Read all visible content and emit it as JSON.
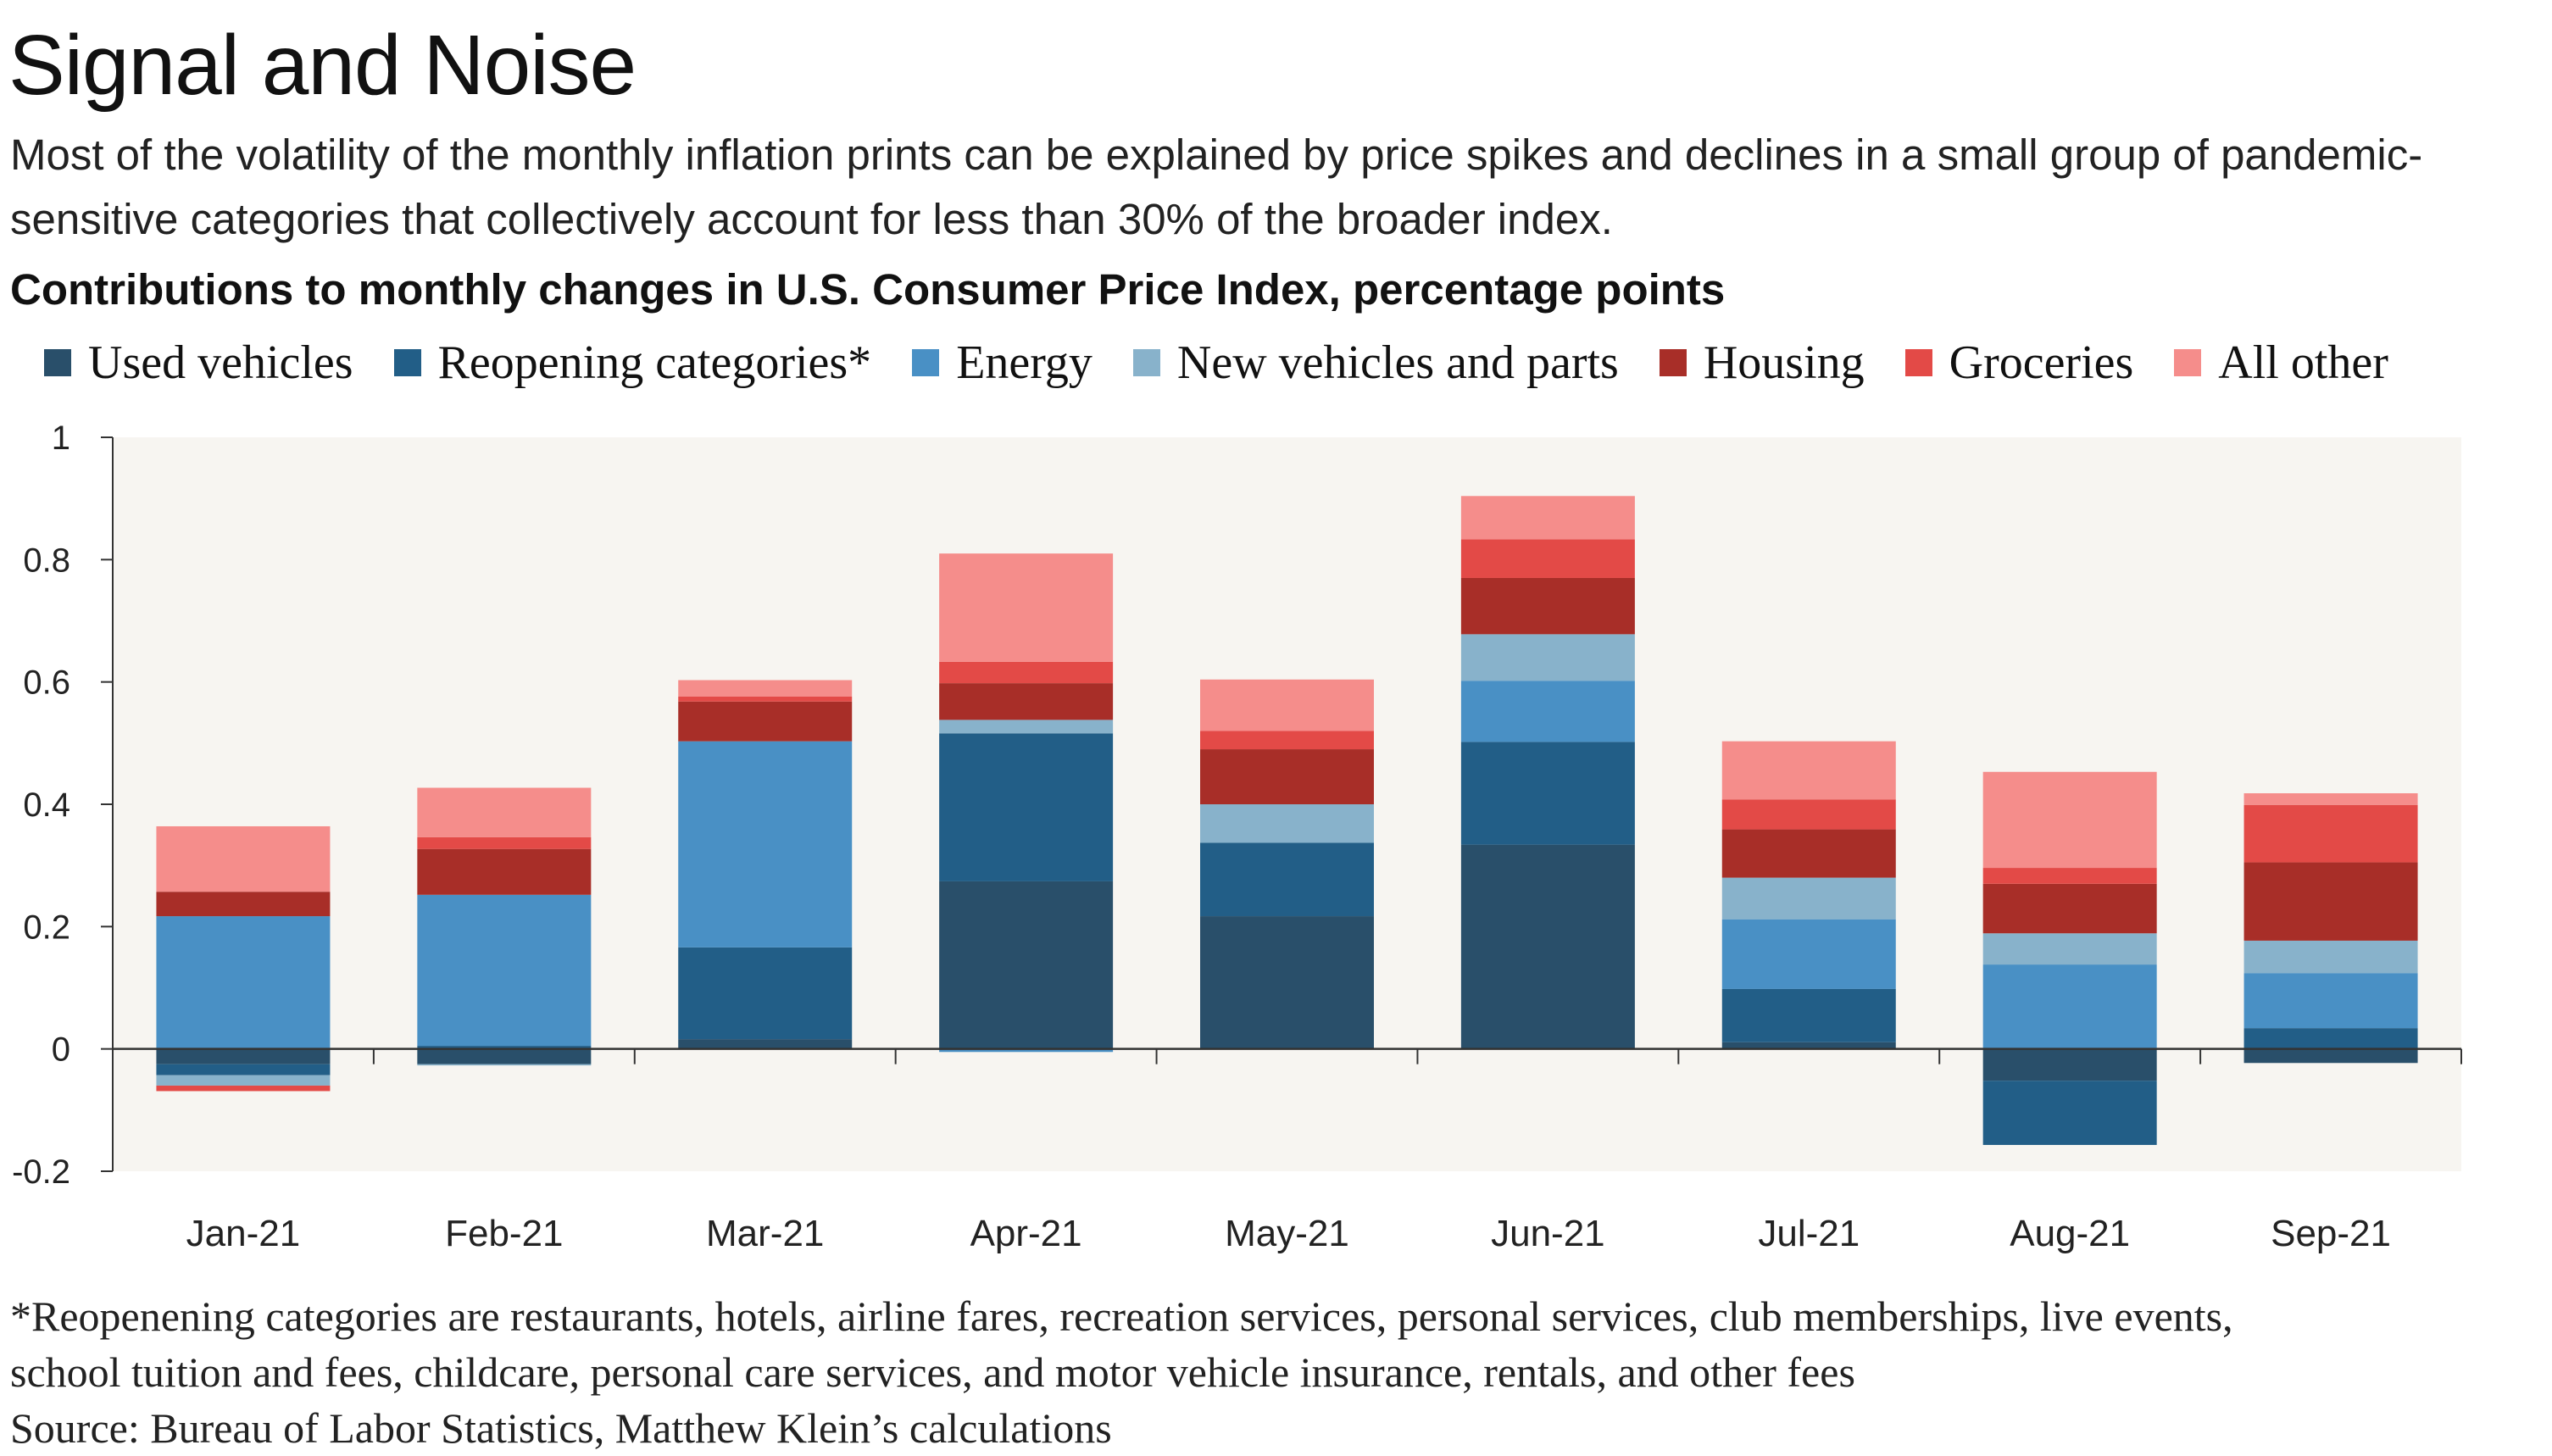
{
  "title": "Signal and Noise",
  "subtitle": "Most of the volatility of the monthly inflation prints can be explained by price spikes and declines in a small group of pandemic-sensitive categories that collectively account for less than 30% of the broader index.",
  "chart_data": {
    "type": "bar",
    "stacked": true,
    "title": "Contributions to monthly changes in U.S. Consumer Price Index, percentage points",
    "xlabel": "",
    "ylabel": "",
    "ylim": [
      -0.2,
      1
    ],
    "yticks": [
      -0.2,
      0,
      0.2,
      0.4,
      0.6,
      0.8,
      1
    ],
    "ytick_labels": [
      "-0.2",
      "0",
      "0.2",
      "0.4",
      "0.6",
      "0.8",
      "1"
    ],
    "grid": false,
    "legend_position": "top",
    "background": "#f7f5f1",
    "categories": [
      "Jan-21",
      "Feb-21",
      "Mar-21",
      "Apr-21",
      "May-21",
      "Jun-21",
      "Jul-21",
      "Aug-21",
      "Sep-21"
    ],
    "series": [
      {
        "name": "Used vehicles",
        "color": "#294f6a",
        "values": [
          -0.025,
          -0.025,
          0.016,
          0.274,
          0.217,
          0.334,
          0.011,
          -0.052,
          -0.023
        ]
      },
      {
        "name": "Reopening categories*",
        "color": "#225e87",
        "values": [
          -0.018,
          0.005,
          0.15,
          0.242,
          0.12,
          0.168,
          0.087,
          -0.105,
          0.034
        ]
      },
      {
        "name": "Energy",
        "color": "#4990c5",
        "values": [
          0.217,
          0.247,
          0.337,
          -0.005,
          0.0,
          0.1,
          0.114,
          0.138,
          0.09
        ]
      },
      {
        "name": "New vehicles and parts",
        "color": "#88b2cb",
        "values": [
          -0.017,
          -0.002,
          0.0,
          0.022,
          0.063,
          0.076,
          0.068,
          0.051,
          0.053
        ]
      },
      {
        "name": "Housing",
        "color": "#a82e28",
        "values": [
          0.04,
          0.075,
          0.065,
          0.06,
          0.09,
          0.092,
          0.079,
          0.081,
          0.128
        ]
      },
      {
        "name": "Groceries",
        "color": "#e34a47",
        "values": [
          -0.009,
          0.019,
          0.008,
          0.035,
          0.03,
          0.063,
          0.049,
          0.026,
          0.094
        ]
      },
      {
        "name": "All other",
        "color": "#f58d8b",
        "values": [
          0.107,
          0.081,
          0.027,
          0.177,
          0.084,
          0.071,
          0.095,
          0.157,
          0.019
        ]
      }
    ]
  },
  "footnote": {
    "line1": "*Reopenening categories are restaurants, hotels, airline fares, recreation services, personal services,  club memberships, live events,",
    "line2": "school tuition and fees, childcare, personal care services, and motor vehicle insurance, rentals, and other fees",
    "source": "Source: Bureau of Labor Statistics, Matthew Klein’s calculations"
  }
}
